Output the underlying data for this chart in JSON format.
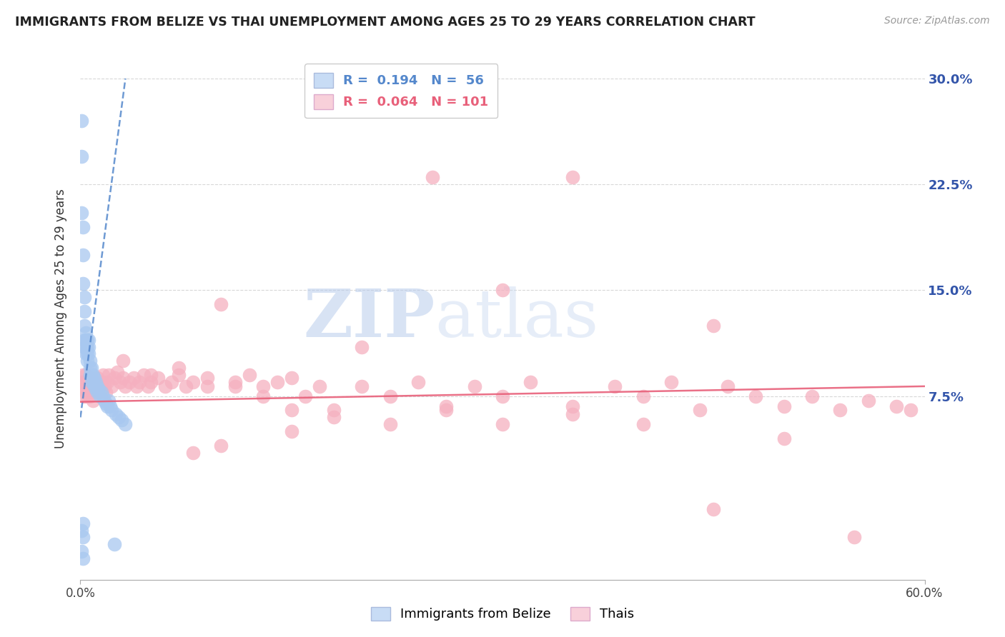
{
  "title": "IMMIGRANTS FROM BELIZE VS THAI UNEMPLOYMENT AMONG AGES 25 TO 29 YEARS CORRELATION CHART",
  "source": "Source: ZipAtlas.com",
  "ylabel": "Unemployment Among Ages 25 to 29 years",
  "x_min": 0.0,
  "x_max": 0.6,
  "y_min": -0.055,
  "y_max": 0.315,
  "y_ticks": [
    0.075,
    0.15,
    0.225,
    0.3
  ],
  "x_ticks": [
    0.0,
    0.6
  ],
  "belize_R": 0.194,
  "belize_N": 56,
  "thai_R": 0.064,
  "thai_N": 101,
  "belize_color": "#a8c8f0",
  "thai_color": "#f5b0c0",
  "belize_trend_color": "#5588cc",
  "thai_trend_color": "#e8607a",
  "legend_box_color_belize": "#c8dcf5",
  "legend_box_color_thai": "#f8d0da",
  "grid_color": "#d8d8d8",
  "background_color": "#ffffff",
  "title_color": "#222222",
  "right_tick_color": "#3355aa",
  "watermark_zip": "ZIP",
  "watermark_atlas": "atlas",
  "watermark_color": "#c5d8f0",
  "belize_x": [
    0.001,
    0.001,
    0.001,
    0.001,
    0.001,
    0.002,
    0.002,
    0.002,
    0.002,
    0.002,
    0.002,
    0.003,
    0.003,
    0.003,
    0.003,
    0.003,
    0.004,
    0.004,
    0.004,
    0.004,
    0.005,
    0.005,
    0.005,
    0.005,
    0.006,
    0.006,
    0.006,
    0.007,
    0.007,
    0.007,
    0.008,
    0.008,
    0.008,
    0.009,
    0.009,
    0.01,
    0.01,
    0.011,
    0.011,
    0.012,
    0.012,
    0.013,
    0.014,
    0.015,
    0.016,
    0.017,
    0.018,
    0.019,
    0.02,
    0.021,
    0.022,
    0.024,
    0.025,
    0.027,
    0.029,
    0.032
  ],
  "belize_y": [
    0.27,
    0.245,
    -0.02,
    -0.035,
    0.205,
    0.195,
    0.175,
    0.155,
    -0.025,
    -0.04,
    -0.015,
    0.145,
    0.135,
    0.125,
    0.115,
    0.11,
    0.12,
    0.115,
    0.11,
    0.105,
    0.115,
    0.11,
    0.105,
    0.1,
    0.115,
    0.11,
    0.105,
    0.1,
    0.095,
    0.09,
    0.095,
    0.09,
    0.085,
    0.09,
    0.085,
    0.088,
    0.082,
    0.085,
    0.08,
    0.082,
    0.078,
    0.08,
    0.075,
    0.078,
    0.075,
    0.072,
    0.07,
    0.068,
    0.072,
    0.068,
    0.065,
    -0.03,
    0.062,
    0.06,
    0.058,
    0.055
  ],
  "thai_x": [
    0.001,
    0.002,
    0.002,
    0.003,
    0.003,
    0.004,
    0.004,
    0.005,
    0.005,
    0.006,
    0.006,
    0.007,
    0.007,
    0.008,
    0.008,
    0.009,
    0.009,
    0.01,
    0.011,
    0.012,
    0.013,
    0.014,
    0.015,
    0.016,
    0.017,
    0.018,
    0.019,
    0.02,
    0.022,
    0.024,
    0.026,
    0.028,
    0.03,
    0.032,
    0.035,
    0.038,
    0.04,
    0.042,
    0.045,
    0.048,
    0.05,
    0.055,
    0.06,
    0.065,
    0.07,
    0.075,
    0.08,
    0.09,
    0.1,
    0.11,
    0.12,
    0.13,
    0.14,
    0.15,
    0.16,
    0.17,
    0.18,
    0.2,
    0.22,
    0.24,
    0.26,
    0.28,
    0.3,
    0.32,
    0.35,
    0.38,
    0.4,
    0.42,
    0.44,
    0.46,
    0.48,
    0.5,
    0.52,
    0.54,
    0.56,
    0.58,
    0.59,
    0.03,
    0.05,
    0.07,
    0.09,
    0.11,
    0.13,
    0.15,
    0.18,
    0.22,
    0.26,
    0.3,
    0.35,
    0.4,
    0.45,
    0.5,
    0.55,
    0.25,
    0.2,
    0.35,
    0.45,
    0.3,
    0.15,
    0.1,
    0.08
  ],
  "thai_y": [
    0.085,
    0.09,
    0.08,
    0.085,
    0.075,
    0.08,
    0.09,
    0.085,
    0.075,
    0.082,
    0.078,
    0.088,
    0.075,
    0.082,
    0.078,
    0.085,
    0.072,
    0.08,
    0.085,
    0.088,
    0.082,
    0.078,
    0.085,
    0.09,
    0.082,
    0.078,
    0.085,
    0.09,
    0.082,
    0.088,
    0.092,
    0.085,
    0.088,
    0.082,
    0.085,
    0.088,
    0.082,
    0.085,
    0.09,
    0.082,
    0.085,
    0.088,
    0.082,
    0.085,
    0.09,
    0.082,
    0.085,
    0.082,
    0.14,
    0.085,
    0.09,
    0.082,
    0.085,
    0.088,
    0.075,
    0.082,
    0.065,
    0.082,
    0.075,
    0.085,
    0.068,
    0.082,
    0.075,
    0.085,
    0.068,
    0.082,
    0.075,
    0.085,
    0.065,
    0.082,
    0.075,
    0.068,
    0.075,
    0.065,
    0.072,
    0.068,
    0.065,
    0.1,
    0.09,
    0.095,
    0.088,
    0.082,
    0.075,
    0.065,
    0.06,
    0.055,
    0.065,
    0.055,
    0.062,
    0.055,
    -0.005,
    0.045,
    -0.025,
    0.23,
    0.11,
    0.23,
    0.125,
    0.15,
    0.05,
    0.04,
    0.035
  ],
  "belize_trend_x0": 0.0,
  "belize_trend_y0": 0.06,
  "belize_trend_x1": 0.032,
  "belize_trend_y1": 0.3,
  "thai_trend_x0": 0.0,
  "thai_trend_y0": 0.071,
  "thai_trend_x1": 0.6,
  "thai_trend_y1": 0.082
}
